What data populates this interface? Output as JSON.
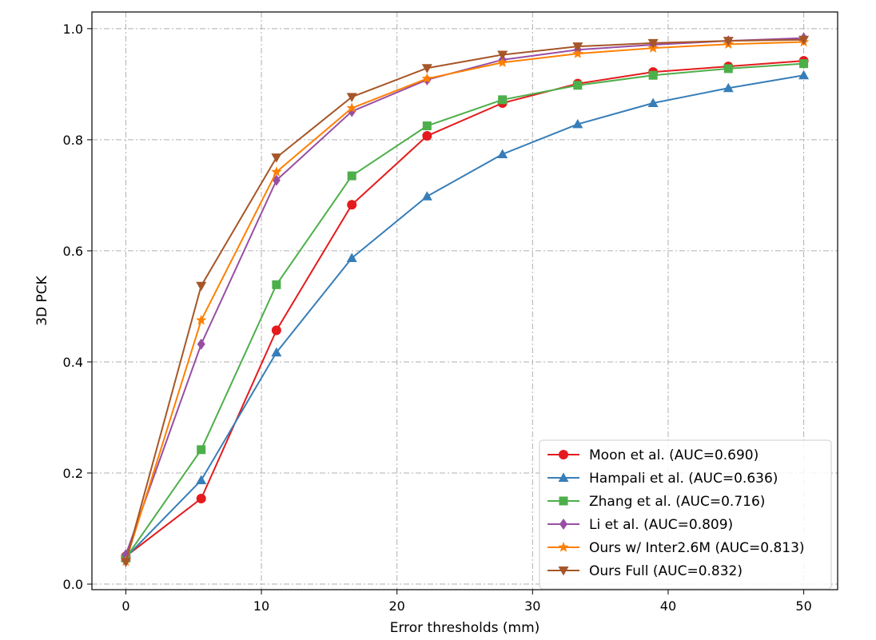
{
  "chart_data": {
    "type": "line",
    "xlabel": "Error thresholds (mm)",
    "ylabel": "3D PCK",
    "xlim": [
      -2.5,
      52.5
    ],
    "ylim": [
      -0.01,
      1.03
    ],
    "x_ticks": [
      0,
      10,
      20,
      30,
      40,
      50
    ],
    "y_ticks": [
      0.0,
      0.2,
      0.4,
      0.6,
      0.8,
      1.0
    ],
    "x_tick_labels": [
      "0",
      "10",
      "20",
      "30",
      "40",
      "50"
    ],
    "y_tick_labels": [
      "0.0",
      "0.2",
      "0.4",
      "0.6",
      "0.8",
      "1.0"
    ],
    "grid": true,
    "legend_position": "lower-right",
    "x": [
      0,
      5.56,
      11.11,
      16.67,
      22.22,
      27.78,
      33.33,
      38.89,
      44.44,
      50
    ],
    "series": [
      {
        "name": "Moon et al. (AUC=0.690)",
        "color": "#e41a1c",
        "marker": "circle",
        "values": [
          0.05,
          0.154,
          0.457,
          0.683,
          0.807,
          0.866,
          0.901,
          0.922,
          0.932,
          0.942
        ]
      },
      {
        "name": "Hampali et al. (AUC=0.636)",
        "color": "#377eb8",
        "marker": "triangle-up",
        "values": [
          0.048,
          0.187,
          0.417,
          0.587,
          0.698,
          0.774,
          0.828,
          0.866,
          0.893,
          0.916
        ]
      },
      {
        "name": "Zhang et al. (AUC=0.716)",
        "color": "#4daf4a",
        "marker": "square",
        "values": [
          0.047,
          0.242,
          0.539,
          0.735,
          0.825,
          0.872,
          0.898,
          0.916,
          0.928,
          0.937
        ]
      },
      {
        "name": "Li et al. (AUC=0.809)",
        "color": "#984ea3",
        "marker": "diamond",
        "values": [
          0.053,
          0.432,
          0.727,
          0.851,
          0.908,
          0.944,
          0.962,
          0.971,
          0.978,
          0.983
        ]
      },
      {
        "name": "Ours w/ Inter2.6M (AUC=0.813)",
        "color": "#ff7f00",
        "marker": "star",
        "values": [
          0.041,
          0.475,
          0.742,
          0.857,
          0.91,
          0.939,
          0.955,
          0.965,
          0.972,
          0.976
        ]
      },
      {
        "name": "Ours Full (AUC=0.832)",
        "color": "#a65628",
        "marker": "triangle-down",
        "values": [
          0.04,
          0.537,
          0.768,
          0.877,
          0.929,
          0.953,
          0.968,
          0.974,
          0.978,
          0.98
        ]
      }
    ]
  }
}
